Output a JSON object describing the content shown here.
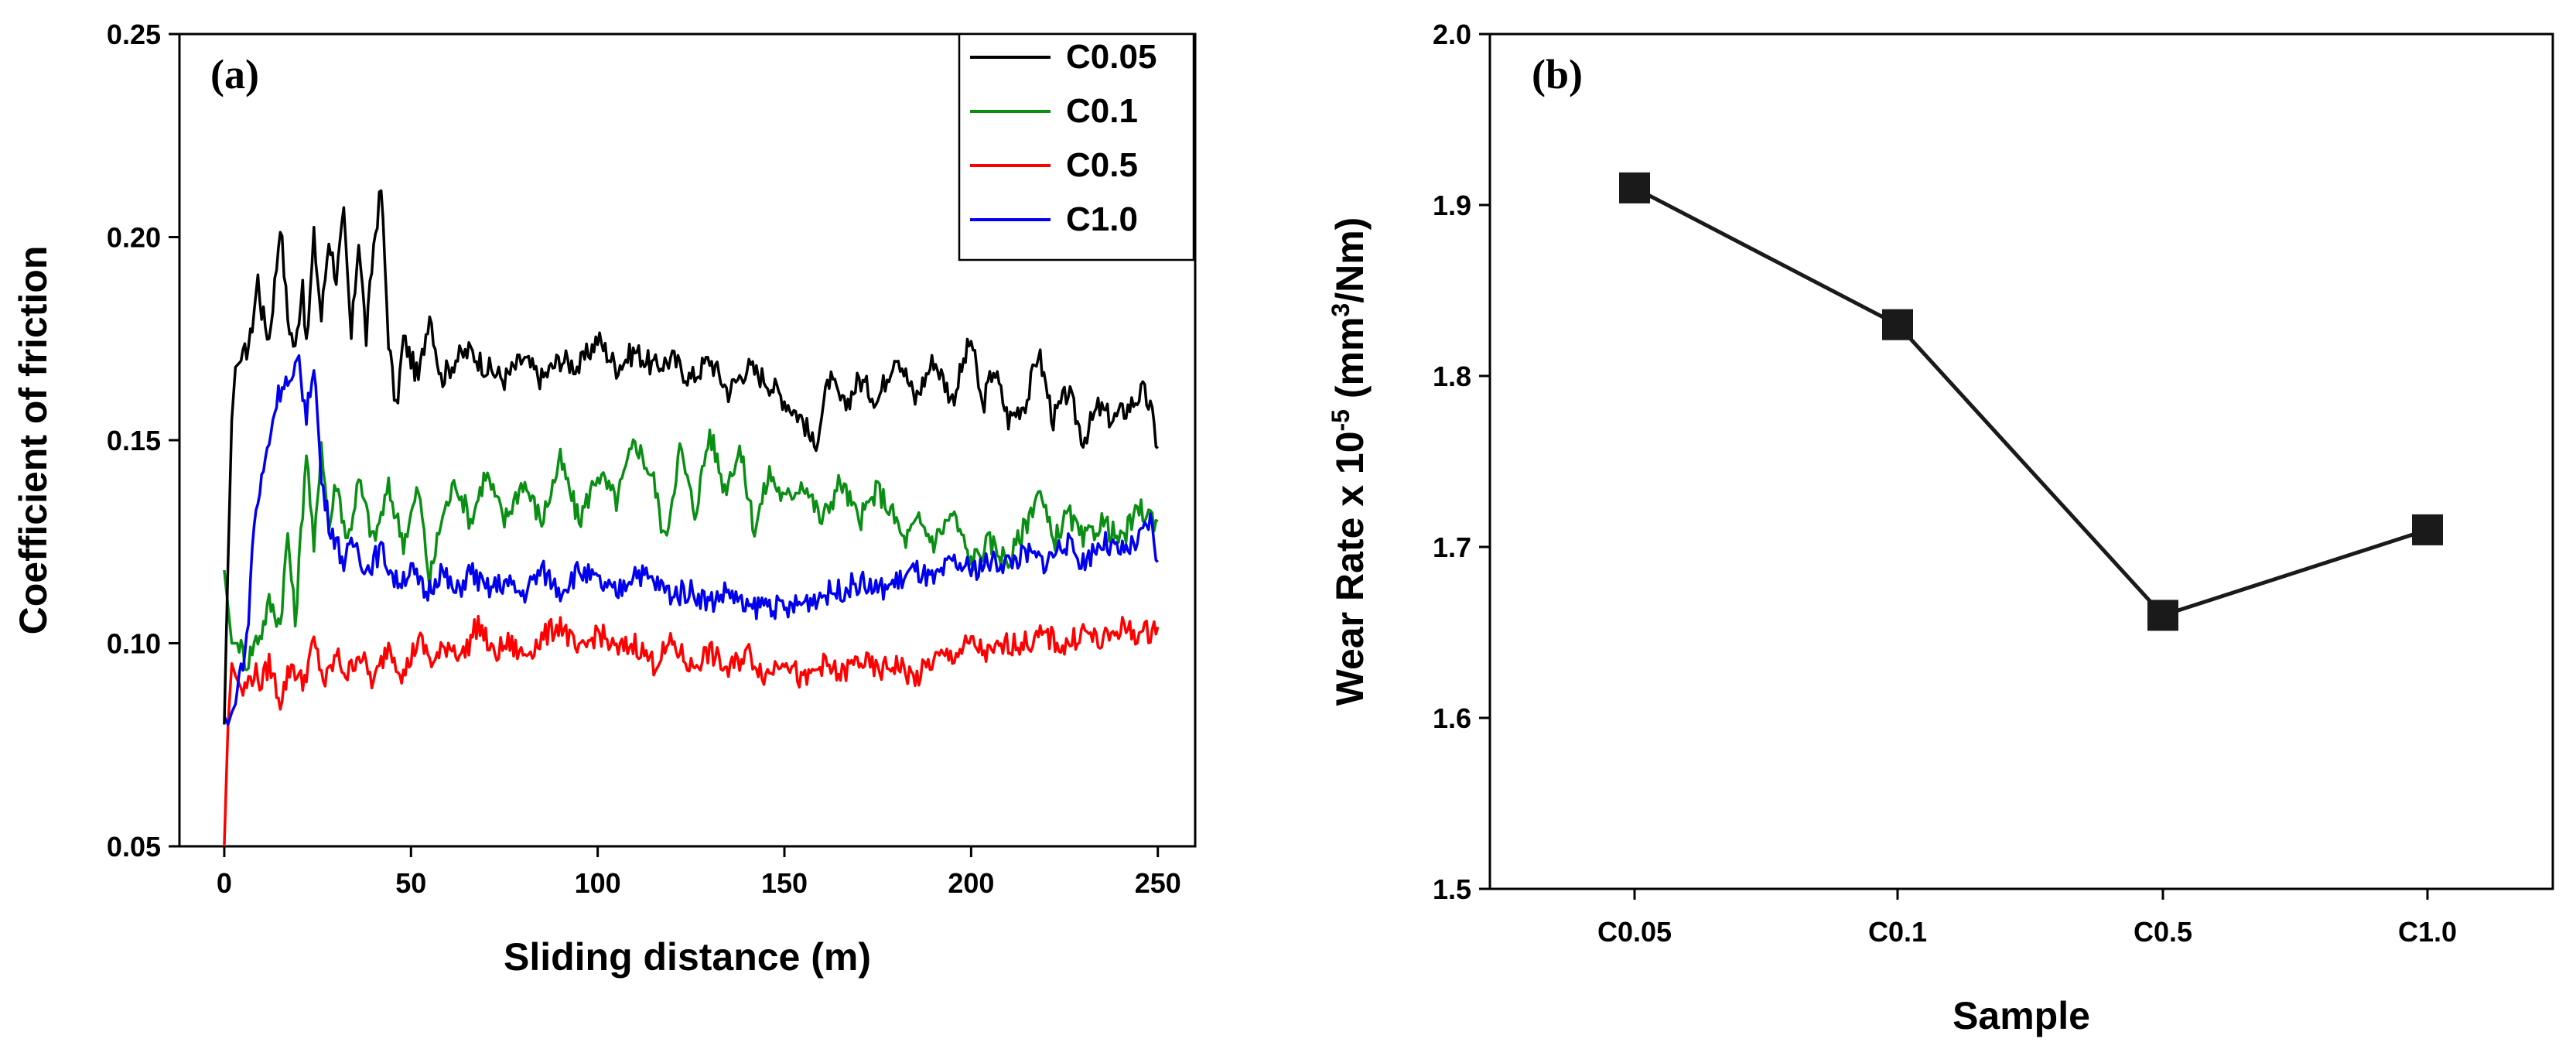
{
  "chart_data": [
    {
      "type": "line",
      "panel_label": "(a)",
      "xlabel": "Sliding distance (m)",
      "ylabel": "Coefficient of friction",
      "xlim": [
        -12,
        260
      ],
      "ylim": [
        0.05,
        0.25
      ],
      "xticks": [
        0,
        50,
        100,
        150,
        200,
        250
      ],
      "yticks": [
        0.05,
        0.1,
        0.15,
        0.2,
        0.25
      ],
      "ytick_labels": [
        "0.05",
        "0.10",
        "0.15",
        "0.20",
        "0.25"
      ],
      "grid": false,
      "legend_position": "top-right",
      "series": [
        {
          "name": "C0.05",
          "color": "#000000",
          "x": [
            0,
            1,
            2,
            3,
            5,
            7,
            9,
            10,
            12,
            14,
            15,
            17,
            19,
            21,
            22,
            24,
            26,
            28,
            30,
            32,
            34,
            36,
            38,
            40,
            42,
            44,
            46,
            48,
            50,
            52,
            55,
            58,
            62,
            66,
            70,
            75,
            80,
            85,
            90,
            95,
            100,
            105,
            110,
            115,
            120,
            125,
            130,
            135,
            140,
            145,
            150,
            155,
            158,
            162,
            166,
            170,
            175,
            180,
            185,
            190,
            195,
            200,
            203,
            206,
            210,
            215,
            218,
            222,
            226,
            230,
            234,
            238,
            242,
            246,
            248,
            250
          ],
          "y": [
            0.08,
            0.12,
            0.155,
            0.168,
            0.17,
            0.175,
            0.19,
            0.182,
            0.175,
            0.193,
            0.204,
            0.18,
            0.172,
            0.19,
            0.172,
            0.2,
            0.18,
            0.2,
            0.19,
            0.205,
            0.175,
            0.2,
            0.175,
            0.198,
            0.212,
            0.175,
            0.157,
            0.175,
            0.17,
            0.165,
            0.182,
            0.165,
            0.17,
            0.172,
            0.168,
            0.165,
            0.17,
            0.165,
            0.17,
            0.168,
            0.175,
            0.168,
            0.172,
            0.168,
            0.17,
            0.165,
            0.17,
            0.162,
            0.168,
            0.165,
            0.16,
            0.155,
            0.148,
            0.165,
            0.158,
            0.165,
            0.16,
            0.172,
            0.16,
            0.17,
            0.16,
            0.175,
            0.158,
            0.168,
            0.155,
            0.16,
            0.172,
            0.155,
            0.162,
            0.15,
            0.158,
            0.155,
            0.158,
            0.162,
            0.158,
            0.148
          ]
        },
        {
          "name": "C0.1",
          "color": "#0a8f14",
          "x": [
            0,
            2,
            4,
            6,
            8,
            10,
            12,
            15,
            17,
            19,
            22,
            24,
            26,
            28,
            30,
            33,
            36,
            40,
            44,
            48,
            52,
            55,
            58,
            62,
            66,
            70,
            75,
            80,
            85,
            90,
            95,
            100,
            105,
            110,
            115,
            118,
            122,
            126,
            130,
            134,
            138,
            142,
            146,
            150,
            155,
            160,
            165,
            170,
            175,
            180,
            182,
            186,
            190,
            195,
            200,
            205,
            210,
            215,
            218,
            222,
            226,
            230,
            235,
            240,
            245,
            250
          ],
          "y": [
            0.118,
            0.1,
            0.1,
            0.095,
            0.1,
            0.103,
            0.11,
            0.105,
            0.127,
            0.105,
            0.148,
            0.122,
            0.15,
            0.128,
            0.14,
            0.125,
            0.14,
            0.125,
            0.138,
            0.125,
            0.138,
            0.115,
            0.13,
            0.14,
            0.13,
            0.142,
            0.13,
            0.14,
            0.13,
            0.145,
            0.13,
            0.142,
            0.135,
            0.15,
            0.14,
            0.125,
            0.148,
            0.132,
            0.152,
            0.138,
            0.148,
            0.128,
            0.142,
            0.135,
            0.14,
            0.13,
            0.14,
            0.13,
            0.138,
            0.13,
            0.125,
            0.13,
            0.125,
            0.132,
            0.12,
            0.125,
            0.12,
            0.13,
            0.138,
            0.125,
            0.132,
            0.125,
            0.13,
            0.125,
            0.133,
            0.13
          ]
        },
        {
          "name": "C0.5",
          "color": "#ff0000",
          "x": [
            0,
            1,
            2,
            3,
            5,
            8,
            10,
            12,
            15,
            18,
            21,
            24,
            27,
            30,
            33,
            36,
            40,
            44,
            48,
            52,
            56,
            60,
            64,
            68,
            72,
            76,
            80,
            85,
            90,
            95,
            100,
            105,
            110,
            115,
            120,
            125,
            130,
            135,
            140,
            145,
            150,
            155,
            160,
            165,
            170,
            175,
            180,
            185,
            190,
            195,
            200,
            205,
            210,
            215,
            220,
            225,
            230,
            235,
            240,
            245,
            250
          ],
          "y": [
            0.05,
            0.08,
            0.095,
            0.092,
            0.088,
            0.093,
            0.09,
            0.095,
            0.086,
            0.095,
            0.09,
            0.1,
            0.09,
            0.097,
            0.092,
            0.098,
            0.09,
            0.1,
            0.092,
            0.101,
            0.095,
            0.1,
            0.097,
            0.105,
            0.097,
            0.1,
            0.097,
            0.101,
            0.105,
            0.097,
            0.103,
            0.098,
            0.1,
            0.095,
            0.1,
            0.094,
            0.098,
            0.093,
            0.098,
            0.092,
            0.097,
            0.09,
            0.095,
            0.092,
            0.096,
            0.093,
            0.095,
            0.091,
            0.096,
            0.097,
            0.1,
            0.097,
            0.1,
            0.1,
            0.102,
            0.099,
            0.103,
            0.1,
            0.104,
            0.102,
            0.104
          ]
        },
        {
          "name": "C1.0",
          "color": "#0000ee",
          "x": [
            0,
            1,
            2,
            3,
            4,
            6,
            8,
            10,
            12,
            14,
            16,
            18,
            20,
            22,
            24,
            26,
            28,
            30,
            32,
            35,
            38,
            42,
            46,
            50,
            54,
            58,
            62,
            66,
            70,
            75,
            80,
            85,
            90,
            95,
            100,
            105,
            110,
            115,
            120,
            125,
            130,
            135,
            140,
            145,
            150,
            155,
            160,
            165,
            170,
            175,
            180,
            185,
            190,
            195,
            200,
            205,
            210,
            215,
            220,
            225,
            230,
            235,
            240,
            245,
            248,
            250
          ],
          "y": [
            0.082,
            0.08,
            0.083,
            0.085,
            0.092,
            0.1,
            0.13,
            0.14,
            0.15,
            0.16,
            0.165,
            0.163,
            0.17,
            0.155,
            0.17,
            0.14,
            0.13,
            0.125,
            0.12,
            0.125,
            0.118,
            0.123,
            0.115,
            0.118,
            0.112,
            0.118,
            0.112,
            0.118,
            0.113,
            0.115,
            0.112,
            0.118,
            0.113,
            0.118,
            0.115,
            0.112,
            0.118,
            0.115,
            0.112,
            0.113,
            0.11,
            0.113,
            0.108,
            0.11,
            0.108,
            0.11,
            0.112,
            0.113,
            0.115,
            0.113,
            0.115,
            0.118,
            0.115,
            0.12,
            0.118,
            0.12,
            0.12,
            0.122,
            0.12,
            0.125,
            0.12,
            0.125,
            0.122,
            0.125,
            0.13,
            0.12
          ]
        }
      ]
    },
    {
      "type": "line",
      "panel_label": "(b)",
      "xlabel": "Sample",
      "ylabel": "Wear Rate x 10-5 (mm3/Nm)",
      "ylabel_parts": {
        "main": "Wear Rate x 10",
        "exp": "-5",
        "unit_open": " (mm",
        "unit_exp": "3",
        "unit_close": "/Nm)"
      },
      "categories": [
        "C0.05",
        "C0.1",
        "C0.5",
        "C1.0"
      ],
      "ylim": [
        1.5,
        2.0
      ],
      "yticks": [
        1.5,
        1.6,
        1.7,
        1.8,
        1.9,
        2.0
      ],
      "ytick_labels": [
        "1.5",
        "1.6",
        "1.7",
        "1.8",
        "1.9",
        "2.0"
      ],
      "grid": false,
      "marker": "square",
      "color": "#1a1a1a",
      "series": [
        {
          "values": [
            1.91,
            1.83,
            1.66,
            1.71
          ]
        }
      ]
    }
  ]
}
